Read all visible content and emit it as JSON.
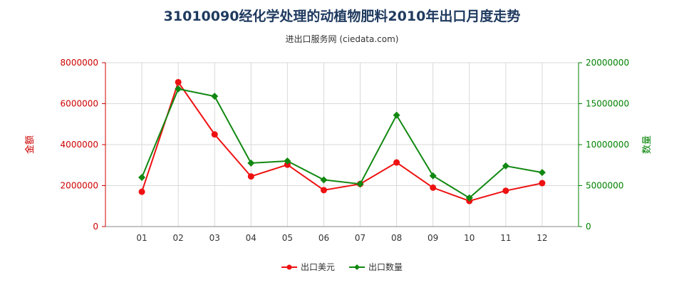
{
  "chart_data": {
    "type": "line",
    "title": "31010090经化学处理的动植物肥料2010年出口月度走势",
    "subtitle": "进出口服务网 (ciedata.com)",
    "categories": [
      "01",
      "02",
      "03",
      "04",
      "05",
      "06",
      "07",
      "08",
      "09",
      "10",
      "11",
      "12"
    ],
    "series": [
      {
        "name": "出口美元",
        "axis": "left",
        "color": "#ee1111",
        "marker": "circle",
        "values": [
          1700000,
          7050000,
          4500000,
          2450000,
          3020000,
          1780000,
          2080000,
          3130000,
          1900000,
          1250000,
          1750000,
          2120000
        ]
      },
      {
        "name": "出口数量",
        "axis": "right",
        "color": "#118811",
        "marker": "diamond",
        "values": [
          6000000,
          16800000,
          15900000,
          7750000,
          8000000,
          5700000,
          5200000,
          13600000,
          6200000,
          3500000,
          7400000,
          6600000
        ]
      }
    ],
    "y_left": {
      "label": "金额",
      "lim": [
        0,
        8000000
      ],
      "ticks": [
        "0",
        "2000000",
        "4000000",
        "6000000",
        "8000000"
      ],
      "color": "#cc0000"
    },
    "y_right": {
      "label": "数量",
      "lim": [
        0,
        20000000
      ],
      "ticks": [
        "0",
        "5000000",
        "10000000",
        "15000000",
        "20000000"
      ],
      "color": "#008000"
    },
    "grid": true,
    "legend": "bottom-center"
  }
}
